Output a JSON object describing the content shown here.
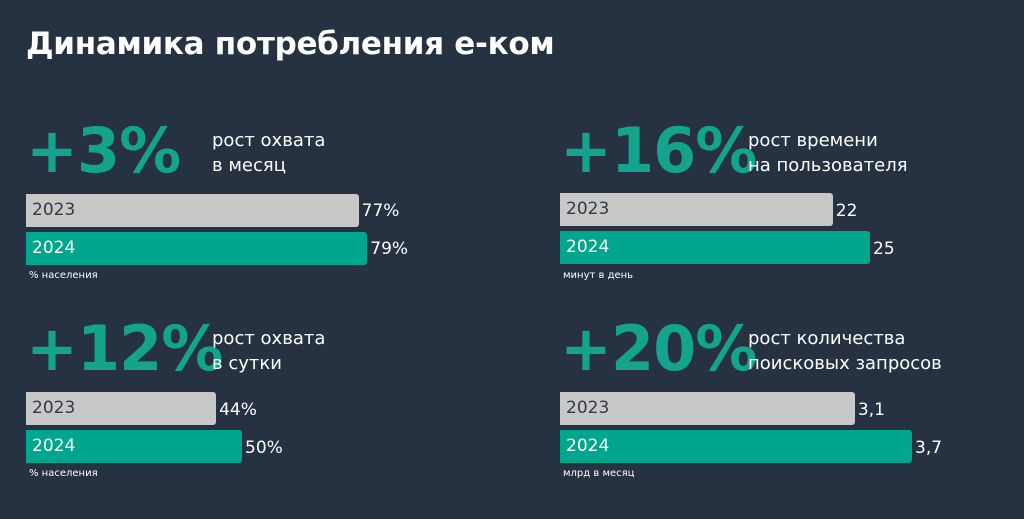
{
  "page": {
    "title": "Динамика потребления е-ком",
    "background": "#263142"
  },
  "colors": {
    "accent": "#14a48e",
    "bar_2023": "#c8c8c8",
    "bar_2024": "#00a68e",
    "bar_2023_text": "#333a45",
    "bar_2024_text": "#ffffff"
  },
  "panels": [
    {
      "big_number": "+3%",
      "caption_line1": "рост охвата",
      "caption_line2": "в месяц",
      "unit": "% населения",
      "bars": [
        {
          "year": "2023",
          "value": 77,
          "label": "77%"
        },
        {
          "year": "2024",
          "value": 79,
          "label": "79%"
        }
      ]
    },
    {
      "big_number": "+16%",
      "caption_line1": "рост времени",
      "caption_line2": "на пользователя",
      "unit": "минут в день",
      "bars": [
        {
          "year": "2023",
          "value": 22,
          "label": "22"
        },
        {
          "year": "2024",
          "value": 25,
          "label": "25"
        }
      ]
    },
    {
      "big_number": "+12%",
      "caption_line1": "рост охвата",
      "caption_line2": "в сутки",
      "unit": "% населения",
      "bars": [
        {
          "year": "2023",
          "value": 44,
          "label": "44%"
        },
        {
          "year": "2024",
          "value": 50,
          "label": "50%"
        }
      ]
    },
    {
      "big_number": "+20%",
      "caption_line1": "рост количества",
      "caption_line2": "поисковых запросов",
      "unit": "млрд в месяц",
      "bars": [
        {
          "year": "2023",
          "value": 3.1,
          "label": "3,1"
        },
        {
          "year": "2024",
          "value": 3.7,
          "label": "3,7"
        }
      ]
    }
  ],
  "chart_data": [
    {
      "type": "bar",
      "orientation": "horizontal",
      "title": "+3% рост охвата в месяц",
      "categories": [
        "2023",
        "2024"
      ],
      "values": [
        77,
        79
      ],
      "unit": "% населения"
    },
    {
      "type": "bar",
      "orientation": "horizontal",
      "title": "+16% рост времени на пользователя",
      "categories": [
        "2023",
        "2024"
      ],
      "values": [
        22,
        25
      ],
      "unit": "минут в день"
    },
    {
      "type": "bar",
      "orientation": "horizontal",
      "title": "+12% рост охвата в сутки",
      "categories": [
        "2023",
        "2024"
      ],
      "values": [
        44,
        50
      ],
      "unit": "% населения"
    },
    {
      "type": "bar",
      "orientation": "horizontal",
      "title": "+20% рост количества поисковых запросов",
      "categories": [
        "2023",
        "2024"
      ],
      "values": [
        3.1,
        3.7
      ],
      "unit": "млрд в месяц"
    }
  ]
}
